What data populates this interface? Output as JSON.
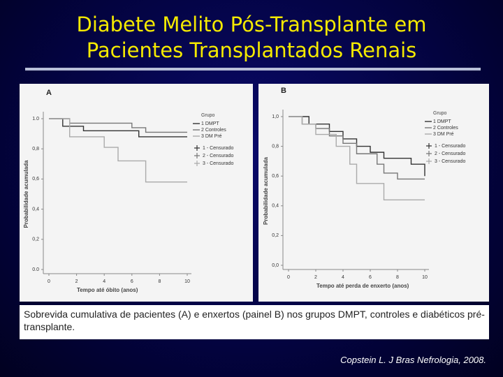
{
  "title_lines": [
    "Diabete Melito Pós-Transplante em",
    "Pacientes Transplantados Renais"
  ],
  "caption": "Sobrevida cumulativa de pacientes (A) e enxertos (painel B) nos grupos DMPT, controles e diabéticos pré-transplante.",
  "citation": "Copstein L. J Bras Nefrologia, 2008.",
  "chart_data": [
    {
      "type": "line",
      "step": true,
      "panel_label": "A",
      "x_label": "Tempo até óbito  (anos)",
      "y_label": "Probabilidade acumulada",
      "xlim": [
        0,
        10
      ],
      "ylim": [
        0,
        1
      ],
      "xticks": [
        0,
        2,
        4,
        6,
        8,
        10
      ],
      "yticks": [
        {
          "value": 0,
          "label": "0.0"
        },
        {
          "value": 0.2,
          "label": "0,2"
        },
        {
          "value": 0.4,
          "label": "0,4"
        },
        {
          "value": 0.6,
          "label": "0,6"
        },
        {
          "value": 0.8,
          "label": "0,8"
        },
        {
          "value": 1,
          "label": "1.0"
        }
      ],
      "legend_title": "Grupo",
      "censored_legend": [
        "1 - Censurado",
        "2 - Censurado",
        "3 - Censurado"
      ],
      "series": [
        {
          "name": "1 DMPT",
          "color": "#333333",
          "x": [
            0,
            1,
            2.5,
            6.5,
            10
          ],
          "values": [
            1,
            0.95,
            0.92,
            0.88,
            0.88
          ]
        },
        {
          "name": "2 Controles",
          "color": "#777777",
          "x": [
            0,
            1.5,
            6,
            7,
            10
          ],
          "values": [
            1,
            0.97,
            0.94,
            0.91,
            0.91
          ]
        },
        {
          "name": "3 DM Pré",
          "color": "#aaaaaa",
          "x": [
            0,
            1.5,
            4,
            5,
            7,
            10
          ],
          "values": [
            1,
            0.88,
            0.81,
            0.72,
            0.58,
            0.58
          ]
        }
      ]
    },
    {
      "type": "line",
      "step": true,
      "panel_label": "B",
      "x_label": "Tempo até perda de enxerto (anos)",
      "y_label": "Probabilidade acumulada",
      "xlim": [
        0,
        10
      ],
      "ylim": [
        0,
        1
      ],
      "xticks": [
        0,
        2,
        4,
        6,
        8,
        10
      ],
      "yticks": [
        {
          "value": 0,
          "label": "0,0"
        },
        {
          "value": 0.2,
          "label": "0,2"
        },
        {
          "value": 0.4,
          "label": "0,4"
        },
        {
          "value": 0.6,
          "label": "0,6"
        },
        {
          "value": 0.8,
          "label": "0,8"
        },
        {
          "value": 1,
          "label": "1,0"
        }
      ],
      "legend_title": "Grupo",
      "censored_legend": [
        "1 - Censurado",
        "2 - Censurado",
        "3 - Censurado"
      ],
      "series": [
        {
          "name": "1 DMPT",
          "color": "#333333",
          "x": [
            0,
            1.5,
            3,
            4,
            5,
            6,
            7,
            9,
            10
          ],
          "values": [
            1,
            0.95,
            0.9,
            0.85,
            0.8,
            0.76,
            0.72,
            0.68,
            0.6
          ]
        },
        {
          "name": "2 Controles",
          "color": "#777777",
          "x": [
            0,
            1,
            2,
            3,
            4,
            5,
            6.5,
            7,
            8,
            10
          ],
          "values": [
            1,
            0.95,
            0.92,
            0.87,
            0.82,
            0.75,
            0.68,
            0.62,
            0.58,
            0.58
          ]
        },
        {
          "name": "3 DM Pré",
          "color": "#aaaaaa",
          "x": [
            0,
            1,
            2,
            3.5,
            4.5,
            5,
            7,
            10
          ],
          "values": [
            1,
            0.95,
            0.88,
            0.8,
            0.68,
            0.55,
            0.44,
            0.44
          ]
        }
      ]
    }
  ]
}
